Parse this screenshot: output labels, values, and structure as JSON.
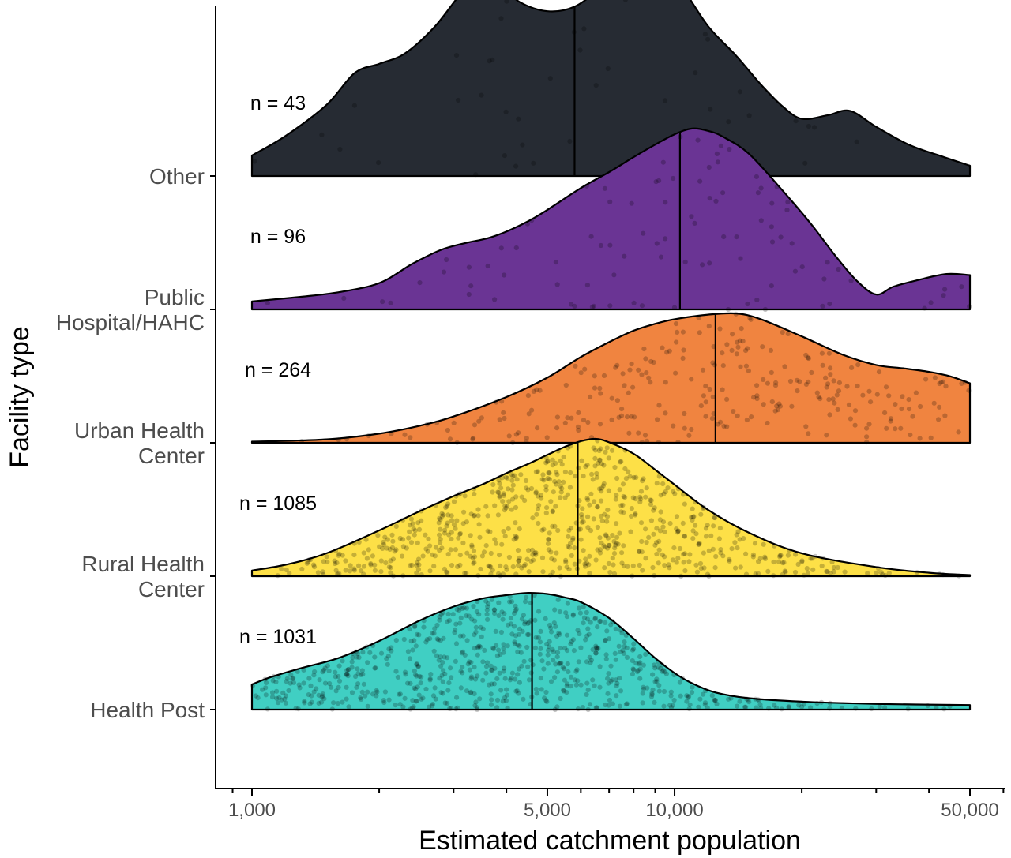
{
  "chart_data": {
    "type": "ridgeline",
    "xlabel": "Estimated catchment population",
    "ylabel": "Facility type",
    "x_scale": "log10",
    "xlim": [
      1000,
      50000
    ],
    "x_ticks": [
      {
        "value": 1000,
        "label": "1,000"
      },
      {
        "value": 5000,
        "label": "5,000"
      },
      {
        "value": 10000,
        "label": "10,000"
      },
      {
        "value": 50000,
        "label": "50,000"
      }
    ],
    "x_minor_ticks": [
      2000,
      3000,
      4000,
      6000,
      7000,
      8000,
      9000,
      20000,
      30000,
      40000
    ],
    "grid": false,
    "legend": "none",
    "points_style": "jittered raw observations with median line",
    "categories": [
      {
        "name": "Health Post",
        "label_lines": [
          "Health Post"
        ],
        "n_label": "n = 1031",
        "n": 1031,
        "median": 4600,
        "color": "#40CFC3",
        "density": [
          [
            1000,
            0.22
          ],
          [
            1100,
            0.28
          ],
          [
            1300,
            0.36
          ],
          [
            1600,
            0.45
          ],
          [
            2000,
            0.6
          ],
          [
            2500,
            0.78
          ],
          [
            3000,
            0.9
          ],
          [
            3500,
            0.97
          ],
          [
            4000,
            1.0
          ],
          [
            4500,
            1.02
          ],
          [
            5000,
            1.01
          ],
          [
            5500,
            0.98
          ],
          [
            6000,
            0.94
          ],
          [
            7000,
            0.8
          ],
          [
            8000,
            0.62
          ],
          [
            9000,
            0.45
          ],
          [
            10000,
            0.32
          ],
          [
            11000,
            0.23
          ],
          [
            12500,
            0.15
          ],
          [
            15000,
            0.1
          ],
          [
            20000,
            0.07
          ],
          [
            30000,
            0.05
          ],
          [
            50000,
            0.04
          ]
        ]
      },
      {
        "name": "Rural Health Center",
        "label_lines": [
          "Rural Health",
          "Center"
        ],
        "n_label": "n = 1085",
        "n": 1085,
        "median": 5900,
        "color": "#FDE047",
        "density": [
          [
            1000,
            0.05
          ],
          [
            1200,
            0.1
          ],
          [
            1500,
            0.2
          ],
          [
            2000,
            0.4
          ],
          [
            2500,
            0.57
          ],
          [
            3000,
            0.7
          ],
          [
            3500,
            0.8
          ],
          [
            4000,
            0.9
          ],
          [
            4500,
            0.98
          ],
          [
            5000,
            1.06
          ],
          [
            5500,
            1.13
          ],
          [
            6000,
            1.18
          ],
          [
            6500,
            1.2
          ],
          [
            7000,
            1.17
          ],
          [
            8000,
            1.07
          ],
          [
            9000,
            0.93
          ],
          [
            10000,
            0.8
          ],
          [
            12000,
            0.58
          ],
          [
            15000,
            0.38
          ],
          [
            20000,
            0.2
          ],
          [
            30000,
            0.08
          ],
          [
            40000,
            0.03
          ],
          [
            50000,
            0.01
          ]
        ]
      },
      {
        "name": "Urban Health Center",
        "label_lines": [
          "Urban Health",
          "Center"
        ],
        "n_label": "n = 264",
        "n": 264,
        "median": 12500,
        "color": "#F08440",
        "density": [
          [
            1000,
            0.01
          ],
          [
            1500,
            0.03
          ],
          [
            2000,
            0.08
          ],
          [
            2500,
            0.15
          ],
          [
            3000,
            0.23
          ],
          [
            4000,
            0.4
          ],
          [
            5000,
            0.57
          ],
          [
            6000,
            0.75
          ],
          [
            7000,
            0.88
          ],
          [
            8000,
            0.98
          ],
          [
            9000,
            1.04
          ],
          [
            10000,
            1.08
          ],
          [
            12000,
            1.12
          ],
          [
            14000,
            1.13
          ],
          [
            16000,
            1.08
          ],
          [
            20000,
            0.93
          ],
          [
            25000,
            0.77
          ],
          [
            30000,
            0.68
          ],
          [
            35000,
            0.65
          ],
          [
            40000,
            0.62
          ],
          [
            45000,
            0.58
          ],
          [
            50000,
            0.52
          ]
        ]
      },
      {
        "name": "Public Hospital/HAHC",
        "label_lines": [
          "Public",
          "Hospital/HAHC"
        ],
        "n_label": "n = 96",
        "n": 96,
        "median": 10300,
        "color": "#6A3494",
        "density": [
          [
            1000,
            0.07
          ],
          [
            1300,
            0.11
          ],
          [
            1600,
            0.15
          ],
          [
            2000,
            0.23
          ],
          [
            2400,
            0.4
          ],
          [
            2800,
            0.52
          ],
          [
            3200,
            0.58
          ],
          [
            3600,
            0.62
          ],
          [
            4000,
            0.68
          ],
          [
            4500,
            0.77
          ],
          [
            5000,
            0.87
          ],
          [
            6000,
            1.06
          ],
          [
            7000,
            1.2
          ],
          [
            8000,
            1.33
          ],
          [
            9000,
            1.44
          ],
          [
            10000,
            1.53
          ],
          [
            11000,
            1.58
          ],
          [
            12000,
            1.56
          ],
          [
            13000,
            1.51
          ],
          [
            15000,
            1.36
          ],
          [
            18000,
            1.04
          ],
          [
            21000,
            0.75
          ],
          [
            24000,
            0.47
          ],
          [
            27000,
            0.25
          ],
          [
            30000,
            0.13
          ],
          [
            33000,
            0.2
          ],
          [
            38000,
            0.26
          ],
          [
            44000,
            0.31
          ],
          [
            50000,
            0.3
          ]
        ]
      },
      {
        "name": "Other",
        "label_lines": [
          "Other"
        ],
        "n_label": "n = 43",
        "n": 43,
        "median": 5800,
        "color": "#262B33",
        "density": [
          [
            1000,
            0.18
          ],
          [
            1200,
            0.35
          ],
          [
            1500,
            0.62
          ],
          [
            1750,
            0.9
          ],
          [
            2000,
            0.98
          ],
          [
            2300,
            1.07
          ],
          [
            2700,
            1.3
          ],
          [
            3100,
            1.58
          ],
          [
            3400,
            1.72
          ],
          [
            3800,
            1.69
          ],
          [
            4300,
            1.52
          ],
          [
            5000,
            1.44
          ],
          [
            5800,
            1.48
          ],
          [
            6700,
            1.65
          ],
          [
            7500,
            1.83
          ],
          [
            8400,
            1.94
          ],
          [
            9300,
            1.87
          ],
          [
            10500,
            1.63
          ],
          [
            12000,
            1.31
          ],
          [
            14000,
            1.05
          ],
          [
            16000,
            0.8
          ],
          [
            18000,
            0.61
          ],
          [
            20000,
            0.5
          ],
          [
            23000,
            0.53
          ],
          [
            26000,
            0.57
          ],
          [
            30000,
            0.43
          ],
          [
            36000,
            0.27
          ],
          [
            43000,
            0.17
          ],
          [
            50000,
            0.09
          ]
        ]
      }
    ]
  }
}
